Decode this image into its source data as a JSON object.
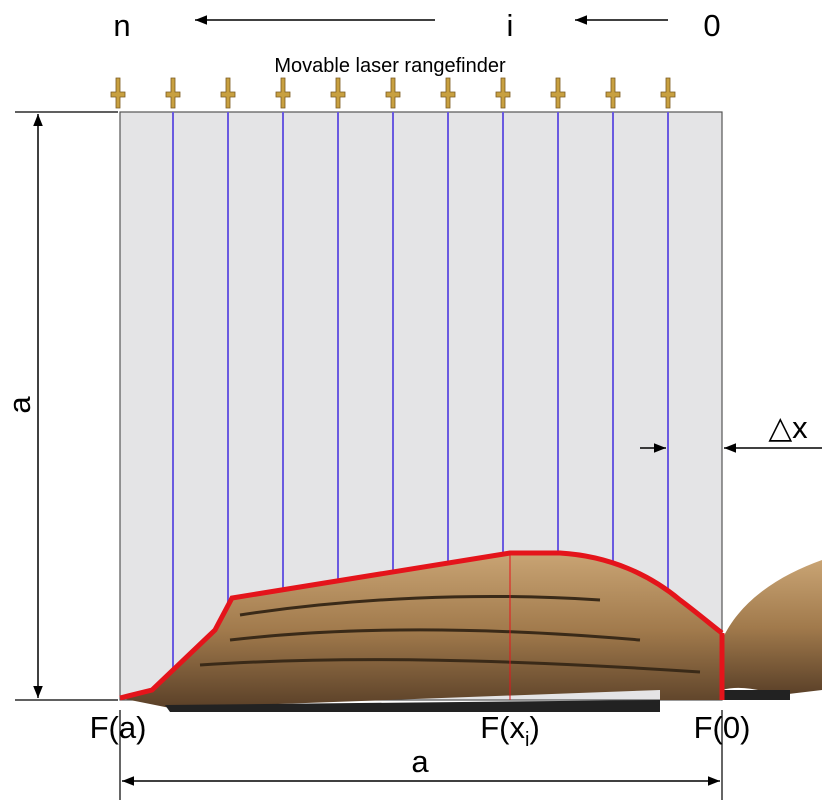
{
  "header": {
    "left": "n",
    "middle": "i",
    "right": "0",
    "caption": "Movable laser rangefinder"
  },
  "dimensions": {
    "height": "a",
    "width": "a",
    "step": "△x"
  },
  "labels": {
    "start": "F(a)",
    "middle": {
      "base": "F(x",
      "sub": "i",
      "close": ")"
    },
    "end": "F(0)"
  }
}
